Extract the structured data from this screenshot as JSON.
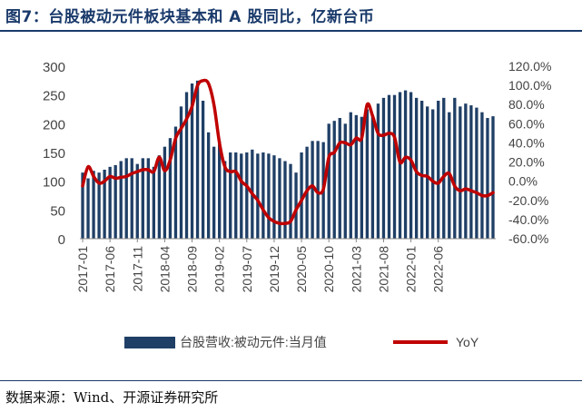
{
  "title": "图7：台股被动元件板块基本和 A 股同比，亿新台币",
  "source": "数据来源：Wind、开源证券研究所",
  "chart_data": {
    "type": "bar",
    "left_ylim": [
      0,
      300
    ],
    "left_yticks": [
      "0",
      "50",
      "100",
      "150",
      "200",
      "250",
      "300"
    ],
    "right_ylim": [
      -0.6,
      1.2
    ],
    "right_yticks": [
      "-60.0%",
      "-40.0%",
      "-20.0%",
      "0.0%",
      "20.0%",
      "40.0%",
      "60.0%",
      "80.0%",
      "100.0%",
      "120.0%"
    ],
    "x_ticks": [
      "2017-01",
      "2017-06",
      "2017-11",
      "2018-04",
      "2018-09",
      "2019-02",
      "2019-07",
      "2019-12",
      "2020-05",
      "2020-10",
      "2021-03",
      "2021-08",
      "2022-01",
      "2022-06"
    ],
    "legend_position": "bottom",
    "bar_color": "#1f3f66",
    "line_color": "#c00000",
    "series": [
      {
        "name": "台股营收:被动元件:当月值",
        "axis": "left",
        "type": "bar",
        "values": [
          115,
          105,
          118,
          115,
          120,
          125,
          128,
          135,
          140,
          140,
          130,
          140,
          140,
          125,
          145,
          160,
          175,
          195,
          230,
          255,
          270,
          275,
          240,
          185,
          160,
          170,
          135,
          150,
          150,
          148,
          150,
          155,
          148,
          150,
          148,
          145,
          140,
          135,
          130,
          115,
          150,
          160,
          170,
          170,
          168,
          200,
          205,
          210,
          200,
          220,
          215,
          212,
          225,
          215,
          235,
          245,
          250,
          250,
          255,
          258,
          255,
          245,
          240,
          230,
          225,
          240,
          245,
          220,
          245,
          230,
          235,
          232,
          228,
          220,
          210,
          213
        ]
      },
      {
        "name": "YoY",
        "axis": "right",
        "type": "line",
        "values": [
          -0.05,
          0.15,
          0.05,
          -0.02,
          0.0,
          0.05,
          0.03,
          0.04,
          0.05,
          0.08,
          0.1,
          0.12,
          0.12,
          0.1,
          0.25,
          0.11,
          0.22,
          0.45,
          0.55,
          0.65,
          0.78,
          1.0,
          1.05,
          1.02,
          0.8,
          0.4,
          0.15,
          0.1,
          0.1,
          0.0,
          -0.05,
          -0.13,
          -0.2,
          -0.3,
          -0.38,
          -0.42,
          -0.44,
          -0.44,
          -0.42,
          -0.3,
          -0.2,
          -0.1,
          -0.05,
          -0.12,
          -0.08,
          0.25,
          0.3,
          0.4,
          0.4,
          0.38,
          0.45,
          0.45,
          0.8,
          0.68,
          0.5,
          0.48,
          0.5,
          0.46,
          0.2,
          0.25,
          0.22,
          0.1,
          0.06,
          0.05,
          0.0,
          -0.02,
          0.05,
          0.08,
          -0.05,
          -0.1,
          -0.08,
          -0.1,
          -0.12,
          -0.15,
          -0.15,
          -0.12
        ]
      }
    ]
  }
}
